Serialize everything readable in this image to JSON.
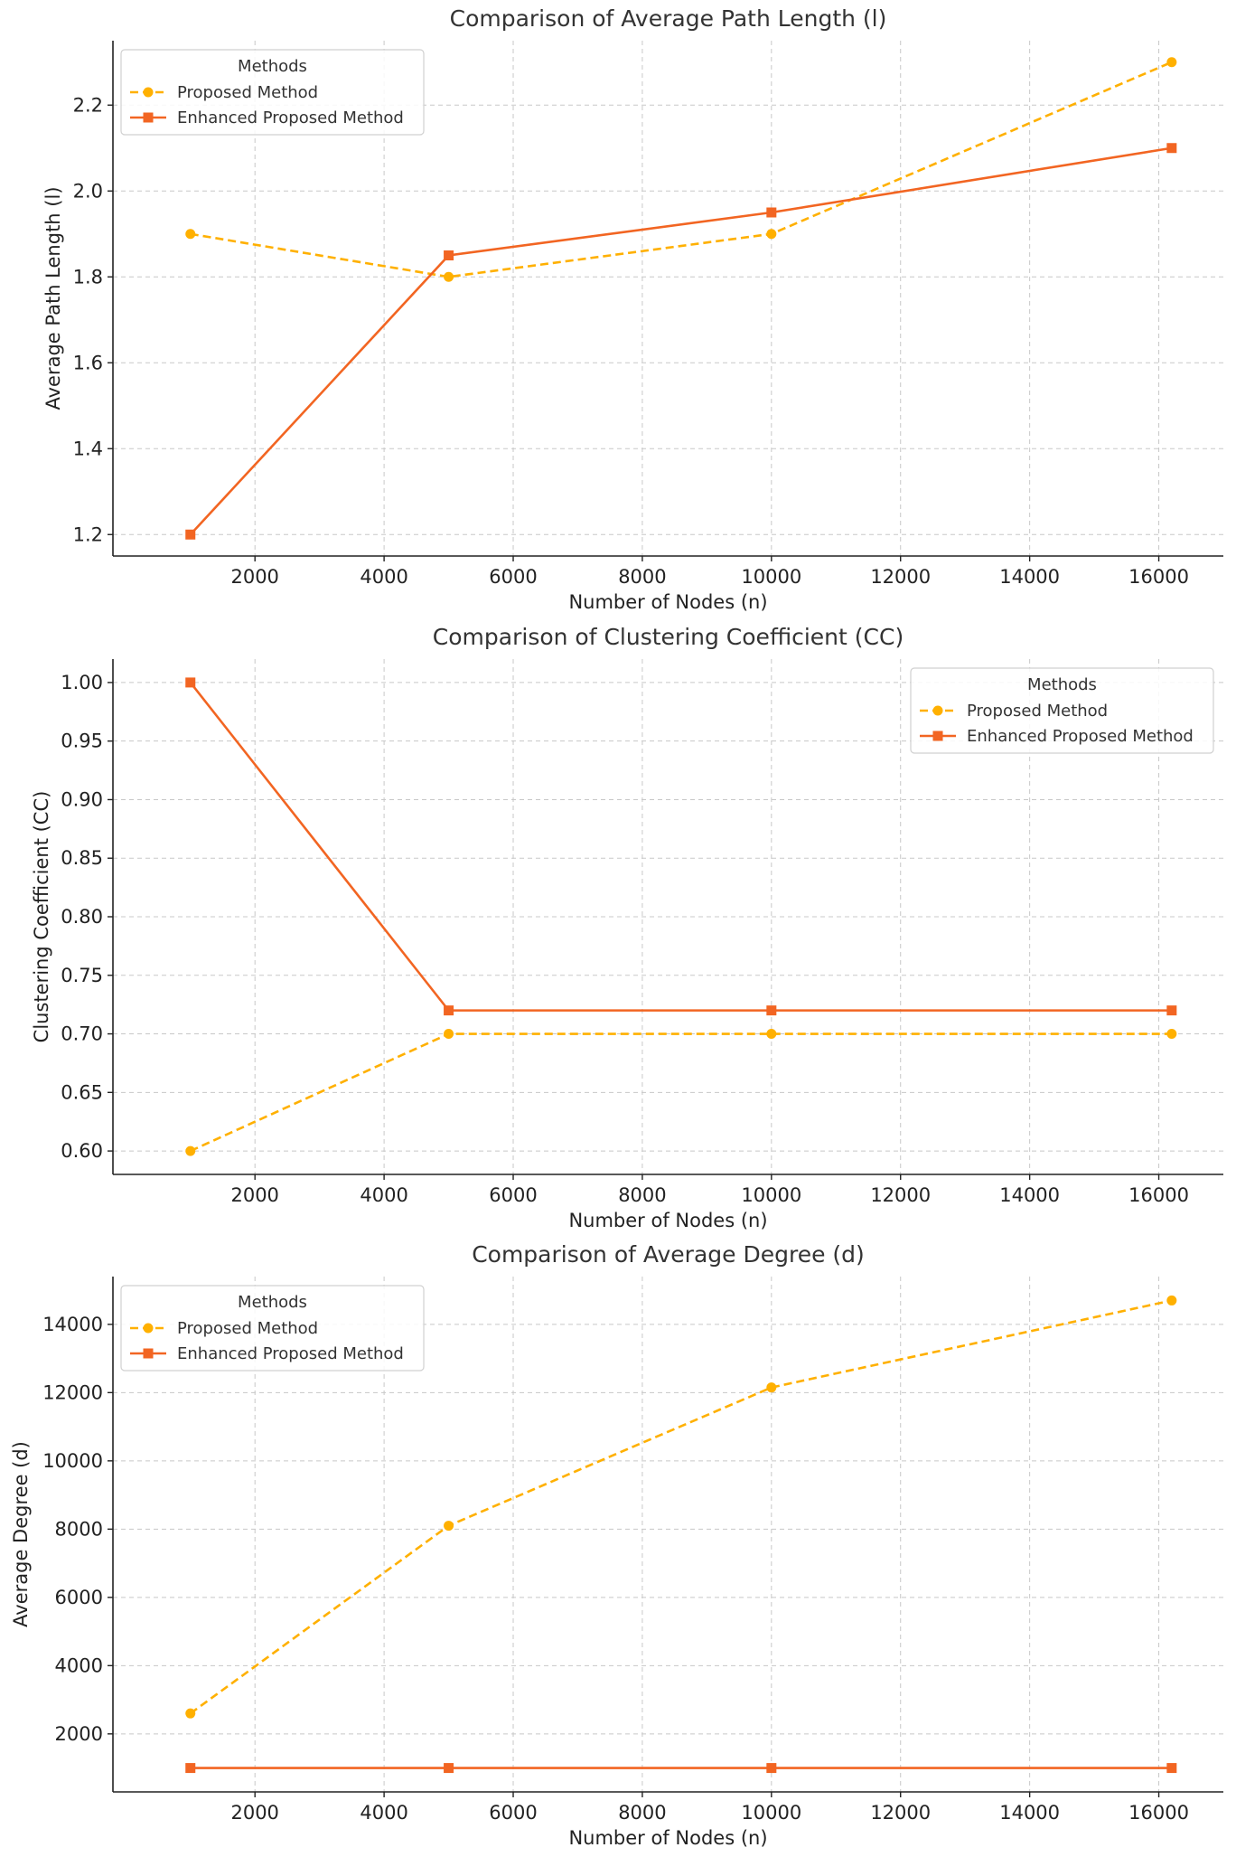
{
  "colors": {
    "proposed": "#FFB000",
    "enhanced": "#F26522"
  },
  "chart_data": [
    {
      "type": "line",
      "title": "Comparison of Average Path Length (l)",
      "xlabel": "Number of Nodes (n)",
      "ylabel": "Average Path Length (l)",
      "x": [
        1000,
        5000,
        10000,
        16200
      ],
      "xlim": [
        -200,
        17000
      ],
      "ylim": [
        1.15,
        2.35
      ],
      "xticks": [
        2000,
        4000,
        6000,
        8000,
        10000,
        12000,
        14000,
        16000
      ],
      "xtick_labels": [
        "2000",
        "4000",
        "6000",
        "8000",
        "10000",
        "12000",
        "14000",
        "16000"
      ],
      "yticks": [
        1.2,
        1.4,
        1.6,
        1.8,
        2.0,
        2.2
      ],
      "ytick_labels": [
        "1.2",
        "1.4",
        "1.6",
        "1.8",
        "2.0",
        "2.2"
      ],
      "grid": true,
      "legend": {
        "title": "Methods",
        "position": "upper left"
      },
      "series": [
        {
          "name": "Proposed Method",
          "values": [
            1.9,
            1.8,
            1.9,
            2.3
          ],
          "style": "dashed",
          "marker": "circle"
        },
        {
          "name": "Enhanced Proposed Method",
          "values": [
            1.2,
            1.85,
            1.95,
            2.1
          ],
          "style": "solid",
          "marker": "square"
        }
      ]
    },
    {
      "type": "line",
      "title": "Comparison of Clustering Coefficient (CC)",
      "xlabel": "Number of Nodes (n)",
      "ylabel": "Clustering Coefficient (CC)",
      "x": [
        1000,
        5000,
        10000,
        16200
      ],
      "xlim": [
        -200,
        17000
      ],
      "ylim": [
        0.58,
        1.02
      ],
      "xticks": [
        2000,
        4000,
        6000,
        8000,
        10000,
        12000,
        14000,
        16000
      ],
      "xtick_labels": [
        "2000",
        "4000",
        "6000",
        "8000",
        "10000",
        "12000",
        "14000",
        "16000"
      ],
      "yticks": [
        0.6,
        0.65,
        0.7,
        0.75,
        0.8,
        0.85,
        0.9,
        0.95,
        1.0
      ],
      "ytick_labels": [
        "0.60",
        "0.65",
        "0.70",
        "0.75",
        "0.80",
        "0.85",
        "0.90",
        "0.95",
        "1.00"
      ],
      "grid": true,
      "legend": {
        "title": "Methods",
        "position": "upper right"
      },
      "series": [
        {
          "name": "Proposed Method",
          "values": [
            0.6,
            0.7,
            0.7,
            0.7
          ],
          "style": "dashed",
          "marker": "circle"
        },
        {
          "name": "Enhanced Proposed Method",
          "values": [
            1.0,
            0.72,
            0.72,
            0.72
          ],
          "style": "solid",
          "marker": "square"
        }
      ]
    },
    {
      "type": "line",
      "title": "Comparison of Average Degree (d)",
      "xlabel": "Number of Nodes (n)",
      "ylabel": "Average Degree (d)",
      "x": [
        1000,
        5000,
        10000,
        16200
      ],
      "xlim": [
        -200,
        17000
      ],
      "ylim": [
        300,
        15400
      ],
      "xticks": [
        2000,
        4000,
        6000,
        8000,
        10000,
        12000,
        14000,
        16000
      ],
      "xtick_labels": [
        "2000",
        "4000",
        "6000",
        "8000",
        "10000",
        "12000",
        "14000",
        "16000"
      ],
      "yticks": [
        2000,
        4000,
        6000,
        8000,
        10000,
        12000,
        14000
      ],
      "ytick_labels": [
        "2000",
        "4000",
        "6000",
        "8000",
        "10000",
        "12000",
        "14000"
      ],
      "grid": true,
      "legend": {
        "title": "Methods",
        "position": "upper left"
      },
      "series": [
        {
          "name": "Proposed Method",
          "values": [
            2600,
            8100,
            12150,
            14700
          ],
          "style": "dashed",
          "marker": "circle"
        },
        {
          "name": "Enhanced Proposed Method",
          "values": [
            1000,
            1000,
            1000,
            1000
          ],
          "style": "solid",
          "marker": "square"
        }
      ]
    }
  ]
}
